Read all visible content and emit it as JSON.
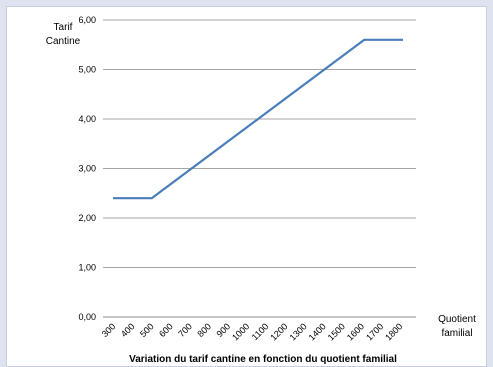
{
  "chart_data": {
    "type": "line",
    "xlabel": "Variation du tarif cantine en fonction du quotient familial",
    "ylabel": [
      "Tarif",
      "Cantine"
    ],
    "x_axis_title": [
      "Quotient",
      "familial"
    ],
    "categories": [
      "300",
      "400",
      "500",
      "600",
      "700",
      "800",
      "900",
      "1000",
      "1100",
      "1200",
      "1300",
      "1400",
      "1500",
      "1600",
      "1700",
      "1800"
    ],
    "series": [
      {
        "values": [
          [
            300,
            2.4
          ],
          [
            400,
            2.4
          ],
          [
            500,
            2.4
          ],
          [
            1600,
            5.6
          ],
          [
            1800,
            5.6
          ]
        ]
      }
    ],
    "y_ticks": [
      "0,00",
      "1,00",
      "2,00",
      "3,00",
      "4,00",
      "5,00",
      "6,00"
    ],
    "ylim": [
      0,
      6
    ],
    "xlim": [
      300,
      1800
    ],
    "grid": true,
    "line_color": "#4a7ebb"
  }
}
